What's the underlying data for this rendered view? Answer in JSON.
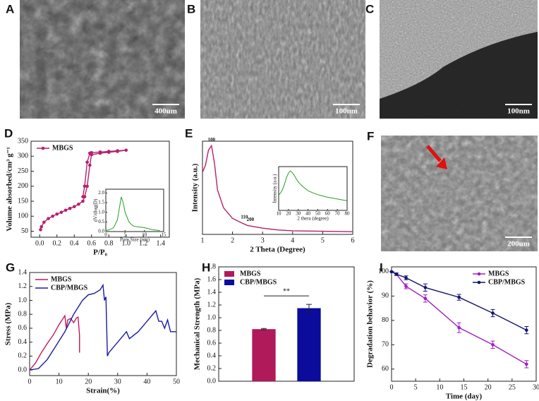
{
  "images": [
    {
      "label": "A",
      "scale_bar": "400um"
    },
    {
      "label": "B",
      "scale_bar": "100nm"
    },
    {
      "label": "C",
      "scale_bar": "100nm"
    },
    {
      "label": "F",
      "scale_bar": "200um"
    }
  ],
  "chart_data": [
    {
      "type": "line",
      "label": "D",
      "x_label": "P/P₀",
      "y_label": "Volume absorbed/cm³ g⁻¹",
      "markers": true,
      "legend": "upper left",
      "xlim": [
        -0.1,
        1.5
      ],
      "ylim": [
        30,
        350
      ],
      "xticks": [
        {
          "value": 0.0,
          "label": "0.0"
        },
        0.2,
        0.4,
        0.6,
        0.8,
        {
          "value": 1.0,
          "label": "1.0"
        },
        1.2,
        1.4
      ],
      "yticks": [
        50,
        100,
        150,
        200,
        250,
        300,
        350
      ],
      "series": [
        {
          "name": "MBGS",
          "color": "#b5206e",
          "x": [
            0.01,
            0.02,
            0.05,
            0.1,
            0.15,
            0.2,
            0.25,
            0.3,
            0.35,
            0.4,
            0.45,
            0.5,
            0.52,
            0.55,
            0.58,
            0.6,
            0.7,
            0.8,
            0.9,
            1.0,
            0.9,
            0.8,
            0.7,
            0.6,
            0.58,
            0.55,
            0.52,
            0.5
          ],
          "values": [
            55,
            65,
            80,
            92,
            100,
            107,
            113,
            120,
            126,
            132,
            140,
            150,
            165,
            200,
            270,
            305,
            310,
            313,
            316,
            320,
            318,
            316,
            314,
            312,
            310,
            280,
            200,
            165
          ]
        }
      ]
    },
    {
      "type": "line",
      "x_label": "Pore Size (nm)",
      "y_label": "dV/dlog(D)",
      "xlim": [
        0,
        15
      ],
      "ylim": [
        0,
        2.2
      ],
      "xticks": [
        0,
        5,
        10,
        15
      ],
      "yticks": [
        {
          "value": 0.0,
          "label": "0.0"
        },
        0.5,
        {
          "value": 1.0,
          "label": "1.0"
        },
        1.5,
        {
          "value": 2.0,
          "label": "2.0"
        }
      ],
      "series": [
        {
          "color": "#22a022",
          "x": [
            0,
            1,
            2,
            3,
            3.5,
            4,
            4.5,
            5,
            6,
            7,
            8,
            10,
            12,
            14
          ],
          "values": [
            0.05,
            0.1,
            0.2,
            0.6,
            1.2,
            1.8,
            1.5,
            1.0,
            0.5,
            0.3,
            0.25,
            0.2,
            0.1,
            0.05
          ]
        }
      ]
    },
    {
      "type": "line",
      "label": "E",
      "x_label": "2 Theta (Degree)",
      "y_label": "Intensity (a.u.)",
      "xlim": [
        1,
        6
      ],
      "ylim": [
        0,
        105
      ],
      "xticks": [
        1,
        2,
        3,
        4,
        5,
        6
      ],
      "annotations": [
        "100",
        "110",
        "200"
      ],
      "series": [
        {
          "color": "#b5206e",
          "x": [
            1,
            1.1,
            1.2,
            1.3,
            1.4,
            1.5,
            1.7,
            2,
            2.3,
            2.5,
            3,
            3.5,
            4,
            5,
            6
          ],
          "values": [
            70,
            78,
            95,
            100,
            80,
            50,
            30,
            18,
            13,
            10,
            7,
            5,
            4,
            3.5,
            3
          ]
        }
      ]
    },
    {
      "type": "line",
      "x_label": "2 thera (degree)",
      "y_label": "Intensity (a.u.)",
      "xlim": [
        10,
        80
      ],
      "ylim": [
        0,
        100
      ],
      "xticks": [
        10,
        20,
        30,
        40,
        50,
        60,
        70,
        80
      ],
      "series": [
        {
          "color": "#22a022",
          "x": [
            10,
            12,
            14,
            16,
            18,
            20,
            22,
            24,
            26,
            28,
            30,
            33,
            36,
            40,
            45,
            50,
            55,
            60,
            65,
            70,
            75,
            80
          ],
          "values": [
            35,
            40,
            48,
            60,
            75,
            85,
            90,
            86,
            80,
            72,
            65,
            58,
            52,
            45,
            40,
            36,
            33,
            30,
            28,
            26,
            24,
            22
          ]
        }
      ]
    },
    {
      "type": "line",
      "label": "G",
      "x_label": "Strain(%)",
      "y_label": "Stress (MPa)",
      "legend": "upper left",
      "xlim": [
        0,
        50
      ],
      "ylim": [
        -0.08,
        1.4
      ],
      "xticks": [
        0,
        10,
        20,
        30,
        40,
        50
      ],
      "yticks": [
        {
          "value": 0.0,
          "label": "0.0"
        },
        0.2,
        0.4,
        0.6,
        0.8,
        {
          "value": 1.0,
          "label": "1.0"
        },
        1.2,
        1.4
      ],
      "series": [
        {
          "name": "MBGS",
          "color": "#c2185b",
          "x": [
            0,
            2,
            4,
            6,
            8,
            10,
            12,
            12.5,
            13,
            14,
            15,
            16,
            16.5,
            17,
            17
          ],
          "values": [
            0,
            0.1,
            0.25,
            0.38,
            0.5,
            0.65,
            0.78,
            0.6,
            0.72,
            0.74,
            0.68,
            0.75,
            0.76,
            0.5,
            0.25
          ]
        },
        {
          "name": "CBP/MBGS",
          "color": "#1a1aa8",
          "x": [
            0,
            3,
            6,
            9,
            12,
            15,
            18,
            20,
            22,
            24,
            25,
            25.5,
            26,
            26.5,
            27,
            30,
            33,
            34,
            37,
            40,
            43,
            44,
            45,
            46,
            47,
            48,
            49,
            50
          ],
          "values": [
            0,
            0.02,
            0.15,
            0.35,
            0.55,
            0.8,
            1.0,
            1.08,
            1.1,
            1.15,
            1.22,
            1.0,
            1.05,
            0.2,
            0.25,
            0.4,
            0.55,
            0.45,
            0.55,
            0.7,
            0.85,
            0.7,
            0.7,
            0.6,
            0.72,
            0.55,
            0.55,
            0.55
          ]
        }
      ]
    },
    {
      "type": "bar",
      "label": "H",
      "y_label": "Mechanical Strength (MPa)",
      "legend": "upper left",
      "ylim": [
        0,
        1.8
      ],
      "yticks": [
        {
          "value": 0.0,
          "label": "0.0"
        },
        0.2,
        0.4,
        0.6,
        0.8,
        {
          "value": 1.0,
          "label": "1.0"
        },
        1.2,
        1.4,
        1.6,
        1.8
      ],
      "annotations": [
        "**"
      ],
      "series": [
        {
          "name": "MBGS",
          "color": "#b0195a",
          "values": [
            0.82
          ],
          "errors": [
            0.01
          ]
        },
        {
          "name": "CBP/MBGS",
          "color": "#0b0b9c",
          "values": [
            1.15
          ],
          "errors": [
            0.06
          ]
        }
      ]
    },
    {
      "type": "line",
      "label": "I",
      "x_label": "Time (day)",
      "y_label": "Degradation behavior (%)",
      "markers": true,
      "legend": "upper right",
      "xlim": [
        0,
        30
      ],
      "ylim": [
        55,
        102
      ],
      "xticks": [
        0,
        5,
        10,
        15,
        20,
        25,
        30
      ],
      "yticks": [
        60,
        70,
        80,
        90,
        100
      ],
      "series": [
        {
          "name": "MBGS",
          "color": "#a020c0",
          "x": [
            0,
            1,
            3,
            7,
            14,
            21,
            28
          ],
          "values": [
            100,
            99,
            94,
            89,
            77,
            70,
            62
          ],
          "errors": [
            0,
            0.5,
            1,
            1.5,
            2,
            1.5,
            1.5
          ]
        },
        {
          "name": "CBP/MBGS",
          "color": "#141470",
          "x": [
            0,
            1,
            3,
            7,
            14,
            21,
            28
          ],
          "values": [
            100,
            99,
            97.5,
            93.5,
            89.5,
            83,
            76
          ],
          "errors": [
            0,
            0.5,
            0.8,
            1.5,
            1.2,
            1.5,
            1.5
          ]
        }
      ]
    }
  ]
}
